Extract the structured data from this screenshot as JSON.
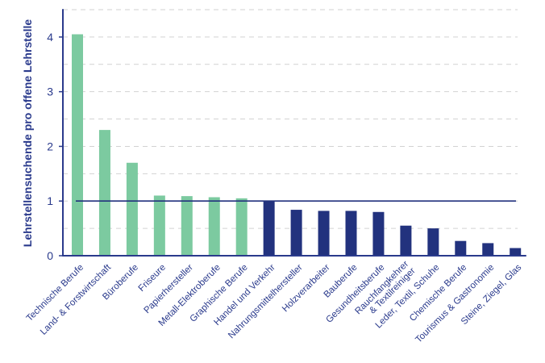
{
  "chart_data": {
    "type": "bar",
    "title": "",
    "xlabel": "",
    "ylabel": "Lehrstellensuchende pro offene Lehrstelle",
    "ylim": [
      0,
      4.5
    ],
    "yticks": [
      0,
      1,
      2,
      3,
      4
    ],
    "grid": true,
    "reference_line": 1,
    "categories": [
      "Technische Berufe",
      "Land- & Forstwirtschaft",
      "Büroberufe",
      "Friseure",
      "Papierhersteller",
      "Metall-Elektroberufe",
      "Graphische Berufe",
      "Handel und Verkehr",
      "Nahrungsmittelhersteller",
      "Holzverarbeiter",
      "Bauberufe",
      "Gesundheitsberufe",
      "Rauchfangkehrer\n& Textilreiniger",
      "Leder, Textil, Schuhe",
      "Chemische Berufe",
      "Tourismus & Gastronomie",
      "Steine, Ziegel, Glas"
    ],
    "values": [
      4.05,
      2.3,
      1.7,
      1.1,
      1.09,
      1.07,
      1.05,
      1.0,
      0.84,
      0.82,
      0.82,
      0.8,
      0.55,
      0.5,
      0.27,
      0.23,
      0.14
    ],
    "colors": {
      "above": "#7ccaa0",
      "below": "#22327e",
      "axis": "#2a3a8c",
      "grid": "#d2d2d2"
    }
  }
}
